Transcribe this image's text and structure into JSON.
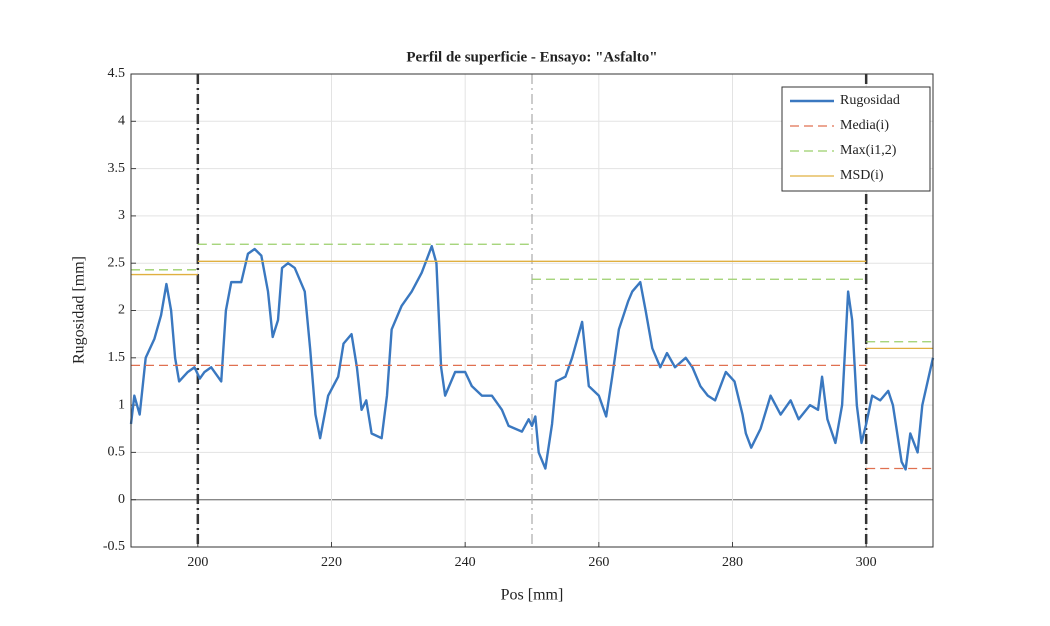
{
  "chart_data": {
    "type": "line",
    "title": "Perfil de superficie - Ensayo: \"Asfalto\"",
    "x_label": "Pos [mm]",
    "y_label": "Rugosidad [mm]",
    "xlim": [
      190,
      310
    ],
    "ylim": [
      -0.5,
      4.5
    ],
    "xticks": [
      200,
      220,
      240,
      260,
      280,
      300
    ],
    "yticks": [
      -0.5,
      0,
      0.5,
      1,
      1.5,
      2,
      2.5,
      3,
      3.5,
      4,
      4.5
    ],
    "grid": true,
    "zero_line": true,
    "legend": "upper right",
    "vlines": [
      {
        "x": 200,
        "style": "bold"
      },
      {
        "x": 250,
        "style": "light"
      },
      {
        "x": 300,
        "style": "bold"
      }
    ],
    "series": [
      {
        "name": "Rugosidad",
        "color": "#3a78c0",
        "dash": "solid",
        "x": [
          190,
          190.5,
          191.3,
          192.2,
          193.5,
          194.5,
          195.3,
          196,
          196.6,
          197.2,
          198.5,
          199.5,
          200.3,
          201,
          202,
          203,
          203.5,
          204.2,
          205,
          206.5,
          207.5,
          208.5,
          209.5,
          210.5,
          211.2,
          212,
          212.6,
          213.5,
          214.5,
          216,
          216.8,
          217.6,
          218.3,
          219.5,
          221,
          221.8,
          223,
          223.8,
          224.5,
          225.2,
          226,
          227.5,
          228.3,
          229,
          230.5,
          232,
          233.5,
          235,
          235.7,
          236.4,
          237,
          238.5,
          240,
          241,
          242.5,
          244,
          245.5,
          246.5,
          248.5,
          249.5,
          250,
          250.5,
          251,
          252,
          253,
          253.6,
          255,
          256,
          257.5,
          258.5,
          260,
          261.1,
          262,
          263,
          264.4,
          265,
          266.2,
          267,
          268,
          269.2,
          270.2,
          271.4,
          273,
          274,
          275.2,
          276.3,
          277.4,
          279,
          280.3,
          281.5,
          282,
          282.8,
          284.2,
          285.7,
          287.2,
          288.7,
          289.9,
          291.6,
          292.8,
          293.4,
          294.2,
          295.4,
          296.4,
          297.3,
          297.9,
          298.6,
          299.3,
          300,
          300.9,
          302.1,
          303.3,
          304,
          305.3,
          305.9,
          306.6,
          307.7,
          308.4,
          310
        ],
        "values": [
          0.8,
          1.1,
          0.9,
          1.5,
          1.7,
          1.95,
          2.28,
          2.0,
          1.5,
          1.25,
          1.35,
          1.4,
          1.28,
          1.35,
          1.4,
          1.3,
          1.25,
          2.0,
          2.3,
          2.3,
          2.6,
          2.65,
          2.58,
          2.2,
          1.72,
          1.9,
          2.45,
          2.5,
          2.45,
          2.2,
          1.6,
          0.9,
          0.65,
          1.1,
          1.3,
          1.65,
          1.75,
          1.4,
          0.95,
          1.05,
          0.7,
          0.65,
          1.1,
          1.8,
          2.05,
          2.2,
          2.4,
          2.68,
          2.5,
          1.4,
          1.1,
          1.35,
          1.35,
          1.2,
          1.1,
          1.1,
          0.95,
          0.78,
          0.72,
          0.85,
          0.78,
          0.88,
          0.5,
          0.33,
          0.8,
          1.25,
          1.3,
          1.5,
          1.88,
          1.2,
          1.1,
          0.88,
          1.3,
          1.8,
          2.1,
          2.2,
          2.3,
          2.0,
          1.6,
          1.4,
          1.55,
          1.4,
          1.5,
          1.4,
          1.2,
          1.1,
          1.05,
          1.35,
          1.25,
          0.9,
          0.7,
          0.55,
          0.75,
          1.1,
          0.9,
          1.05,
          0.85,
          1.0,
          0.95,
          1.3,
          0.85,
          0.6,
          1.0,
          2.2,
          1.9,
          1.0,
          0.6,
          0.8,
          1.1,
          1.05,
          1.15,
          1.0,
          0.4,
          0.32,
          0.7,
          0.5,
          1.0,
          1.5
        ]
      },
      {
        "name": "Media(i)",
        "color": "#e07050",
        "dash": "dashed",
        "x": [
          190,
          300,
          300,
          300,
          310
        ],
        "values": [
          1.42,
          1.42,
          null,
          0.33,
          0.33
        ]
      },
      {
        "name": "Max(i1,2)",
        "color": "#9bcf6b",
        "dash": "dashed",
        "x": [
          190,
          200,
          200,
          200,
          250,
          250,
          250,
          300,
          300,
          300,
          310
        ],
        "values": [
          2.43,
          2.43,
          null,
          2.7,
          2.7,
          null,
          2.33,
          2.33,
          null,
          1.67,
          1.67
        ]
      },
      {
        "name": "MSD(i)",
        "color": "#e0b040",
        "dash": "solid",
        "x": [
          190,
          200,
          200,
          200,
          300,
          300,
          300,
          310
        ],
        "values": [
          2.38,
          2.38,
          null,
          2.52,
          2.52,
          null,
          1.6,
          1.6
        ]
      }
    ]
  }
}
